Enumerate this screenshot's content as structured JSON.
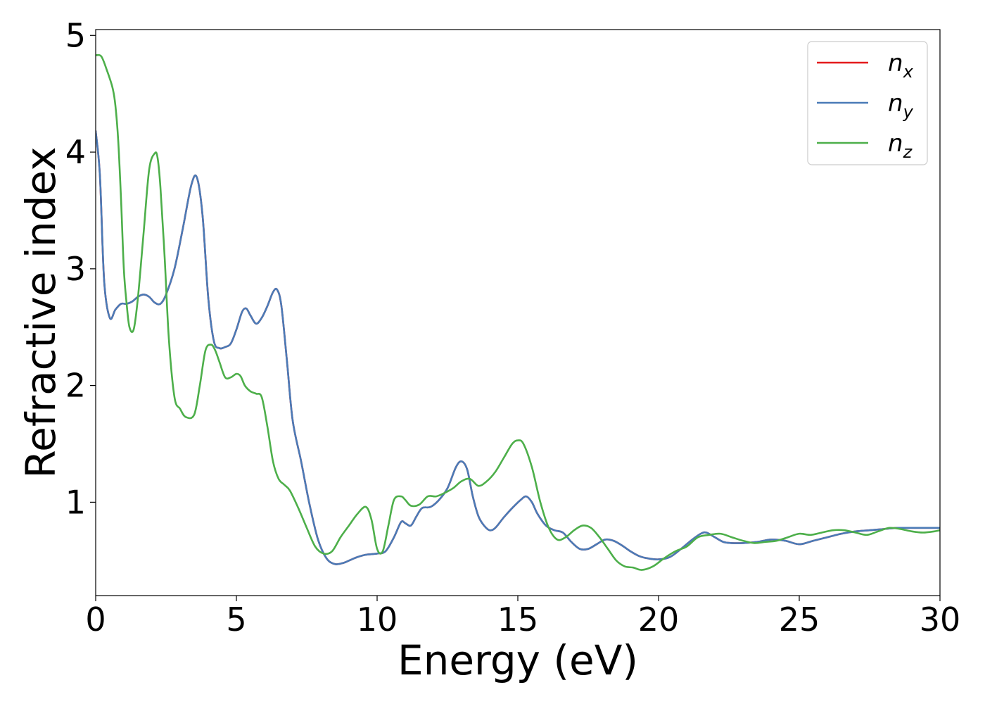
{
  "chart_data": {
    "type": "line",
    "xlabel": "Energy (eV)",
    "ylabel": "Refractive index",
    "xlim": [
      0,
      30
    ],
    "ylim": [
      0.2,
      5.05
    ],
    "xticks": [
      0,
      5,
      10,
      15,
      20,
      25,
      30
    ],
    "yticks": [
      1,
      2,
      3,
      4,
      5
    ],
    "grid": false,
    "legend_position": "top-right",
    "series": [
      {
        "name": "n",
        "subscript": "x",
        "color": "#e41a1c",
        "x": [
          0,
          0.15,
          0.3,
          0.5,
          0.7,
          0.9,
          1.1,
          1.3,
          1.5,
          1.7,
          1.9,
          2.1,
          2.3,
          2.5,
          2.8,
          3.1,
          3.4,
          3.6,
          3.8,
          4.0,
          4.2,
          4.4,
          4.6,
          4.8,
          5.0,
          5.2,
          5.35,
          5.5,
          5.7,
          5.9,
          6.1,
          6.3,
          6.45,
          6.6,
          6.8,
          7.0,
          7.3,
          7.6,
          7.9,
          8.2,
          8.5,
          8.8,
          9.0,
          9.3,
          9.6,
          10.0,
          10.3,
          10.6,
          10.85,
          11.0,
          11.2,
          11.4,
          11.6,
          11.9,
          12.2,
          12.5,
          12.8,
          13.0,
          13.2,
          13.4,
          13.6,
          13.8,
          14.0,
          14.2,
          14.5,
          14.8,
          15.1,
          15.3,
          15.5,
          15.7,
          16.0,
          16.3,
          16.6,
          16.9,
          17.2,
          17.5,
          17.8,
          18.1,
          18.4,
          18.7,
          19.0,
          19.3,
          19.6,
          20.0,
          20.4,
          20.8,
          21.2,
          21.5,
          21.7,
          22.0,
          22.3,
          22.6,
          23.0,
          23.5,
          24.0,
          24.5,
          25.0,
          25.5,
          26.0,
          26.5,
          27.0,
          27.5,
          28.0,
          28.5,
          29.0,
          29.5,
          30.0
        ],
        "y": [
          4.18,
          3.8,
          2.9,
          2.58,
          2.65,
          2.7,
          2.7,
          2.72,
          2.76,
          2.78,
          2.76,
          2.71,
          2.7,
          2.78,
          3.0,
          3.35,
          3.72,
          3.78,
          3.45,
          2.75,
          2.38,
          2.32,
          2.33,
          2.36,
          2.48,
          2.63,
          2.66,
          2.6,
          2.53,
          2.58,
          2.68,
          2.8,
          2.82,
          2.68,
          2.2,
          1.7,
          1.35,
          0.98,
          0.68,
          0.52,
          0.47,
          0.48,
          0.5,
          0.53,
          0.55,
          0.56,
          0.58,
          0.7,
          0.83,
          0.82,
          0.8,
          0.88,
          0.95,
          0.96,
          1.02,
          1.12,
          1.3,
          1.35,
          1.28,
          1.05,
          0.88,
          0.8,
          0.76,
          0.78,
          0.87,
          0.95,
          1.02,
          1.05,
          1.0,
          0.9,
          0.8,
          0.76,
          0.74,
          0.66,
          0.6,
          0.6,
          0.64,
          0.68,
          0.67,
          0.63,
          0.58,
          0.54,
          0.52,
          0.51,
          0.53,
          0.6,
          0.68,
          0.73,
          0.74,
          0.7,
          0.66,
          0.65,
          0.65,
          0.66,
          0.68,
          0.67,
          0.64,
          0.67,
          0.7,
          0.73,
          0.75,
          0.76,
          0.77,
          0.78,
          0.78,
          0.78,
          0.78
        ]
      },
      {
        "name": "n",
        "subscript": "y",
        "color": "#4a7bb7",
        "x": [
          0,
          0.15,
          0.3,
          0.5,
          0.7,
          0.9,
          1.1,
          1.3,
          1.5,
          1.7,
          1.9,
          2.1,
          2.3,
          2.5,
          2.8,
          3.1,
          3.4,
          3.6,
          3.8,
          4.0,
          4.2,
          4.4,
          4.6,
          4.8,
          5.0,
          5.2,
          5.35,
          5.5,
          5.7,
          5.9,
          6.1,
          6.3,
          6.45,
          6.6,
          6.8,
          7.0,
          7.3,
          7.6,
          7.9,
          8.2,
          8.5,
          8.8,
          9.0,
          9.3,
          9.6,
          10.0,
          10.3,
          10.6,
          10.85,
          11.0,
          11.2,
          11.4,
          11.6,
          11.9,
          12.2,
          12.5,
          12.8,
          13.0,
          13.2,
          13.4,
          13.6,
          13.8,
          14.0,
          14.2,
          14.5,
          14.8,
          15.1,
          15.3,
          15.5,
          15.7,
          16.0,
          16.3,
          16.6,
          16.9,
          17.2,
          17.5,
          17.8,
          18.1,
          18.4,
          18.7,
          19.0,
          19.3,
          19.6,
          20.0,
          20.4,
          20.8,
          21.2,
          21.5,
          21.7,
          22.0,
          22.3,
          22.6,
          23.0,
          23.5,
          24.0,
          24.5,
          25.0,
          25.5,
          26.0,
          26.5,
          27.0,
          27.5,
          28.0,
          28.5,
          29.0,
          29.5,
          30.0
        ],
        "y": [
          4.18,
          3.8,
          2.9,
          2.58,
          2.65,
          2.7,
          2.7,
          2.72,
          2.76,
          2.78,
          2.76,
          2.71,
          2.7,
          2.78,
          3.0,
          3.35,
          3.72,
          3.78,
          3.45,
          2.75,
          2.38,
          2.32,
          2.33,
          2.36,
          2.48,
          2.63,
          2.66,
          2.6,
          2.53,
          2.58,
          2.68,
          2.8,
          2.82,
          2.68,
          2.2,
          1.7,
          1.35,
          0.98,
          0.68,
          0.52,
          0.47,
          0.48,
          0.5,
          0.53,
          0.55,
          0.56,
          0.58,
          0.7,
          0.83,
          0.82,
          0.8,
          0.88,
          0.95,
          0.96,
          1.02,
          1.12,
          1.3,
          1.35,
          1.28,
          1.05,
          0.88,
          0.8,
          0.76,
          0.78,
          0.87,
          0.95,
          1.02,
          1.05,
          1.0,
          0.9,
          0.8,
          0.76,
          0.74,
          0.66,
          0.6,
          0.6,
          0.64,
          0.68,
          0.67,
          0.63,
          0.58,
          0.54,
          0.52,
          0.51,
          0.53,
          0.6,
          0.68,
          0.73,
          0.74,
          0.7,
          0.66,
          0.65,
          0.65,
          0.66,
          0.68,
          0.67,
          0.64,
          0.67,
          0.7,
          0.73,
          0.75,
          0.76,
          0.77,
          0.78,
          0.78,
          0.78,
          0.78
        ]
      },
      {
        "name": "n",
        "subscript": "z",
        "color": "#4daf4a",
        "x": [
          0,
          0.2,
          0.4,
          0.6,
          0.7,
          0.8,
          0.9,
          1.0,
          1.1,
          1.2,
          1.35,
          1.5,
          1.7,
          1.9,
          2.1,
          2.2,
          2.3,
          2.45,
          2.6,
          2.8,
          3.0,
          3.2,
          3.5,
          3.7,
          3.9,
          4.1,
          4.25,
          4.4,
          4.6,
          4.8,
          5.0,
          5.15,
          5.3,
          5.5,
          5.7,
          5.9,
          6.1,
          6.3,
          6.5,
          6.7,
          6.9,
          7.2,
          7.5,
          7.8,
          8.1,
          8.4,
          8.7,
          9.0,
          9.3,
          9.6,
          9.8,
          10.0,
          10.2,
          10.4,
          10.6,
          10.85,
          11.0,
          11.2,
          11.5,
          11.8,
          12.1,
          12.4,
          12.7,
          13.0,
          13.3,
          13.6,
          13.9,
          14.2,
          14.5,
          14.8,
          15.0,
          15.2,
          15.5,
          15.8,
          16.1,
          16.4,
          16.7,
          17.0,
          17.3,
          17.6,
          17.9,
          18.2,
          18.5,
          18.8,
          19.1,
          19.4,
          19.8,
          20.2,
          20.6,
          21.0,
          21.4,
          21.8,
          22.2,
          22.6,
          23.0,
          23.4,
          23.8,
          24.2,
          24.6,
          25.0,
          25.4,
          25.8,
          26.2,
          26.6,
          27.0,
          27.4,
          27.8,
          28.2,
          28.6,
          29.0,
          29.4,
          29.8,
          30.0
        ],
        "y": [
          4.83,
          4.82,
          4.7,
          4.55,
          4.4,
          4.1,
          3.6,
          3.0,
          2.7,
          2.5,
          2.48,
          2.75,
          3.3,
          3.85,
          3.99,
          3.95,
          3.7,
          3.1,
          2.4,
          1.9,
          1.8,
          1.73,
          1.75,
          2.0,
          2.3,
          2.35,
          2.3,
          2.2,
          2.07,
          2.07,
          2.1,
          2.08,
          2.0,
          1.95,
          1.93,
          1.9,
          1.65,
          1.35,
          1.2,
          1.15,
          1.1,
          0.95,
          0.78,
          0.62,
          0.56,
          0.58,
          0.7,
          0.8,
          0.9,
          0.96,
          0.85,
          0.6,
          0.58,
          0.8,
          1.02,
          1.05,
          1.02,
          0.97,
          0.98,
          1.05,
          1.05,
          1.08,
          1.12,
          1.18,
          1.2,
          1.14,
          1.18,
          1.26,
          1.38,
          1.5,
          1.53,
          1.5,
          1.3,
          1.0,
          0.78,
          0.68,
          0.7,
          0.76,
          0.8,
          0.78,
          0.7,
          0.6,
          0.5,
          0.45,
          0.44,
          0.42,
          0.45,
          0.52,
          0.58,
          0.62,
          0.7,
          0.72,
          0.73,
          0.7,
          0.67,
          0.65,
          0.66,
          0.67,
          0.7,
          0.73,
          0.72,
          0.74,
          0.76,
          0.76,
          0.74,
          0.72,
          0.75,
          0.78,
          0.77,
          0.75,
          0.74,
          0.75,
          0.76
        ]
      }
    ]
  }
}
